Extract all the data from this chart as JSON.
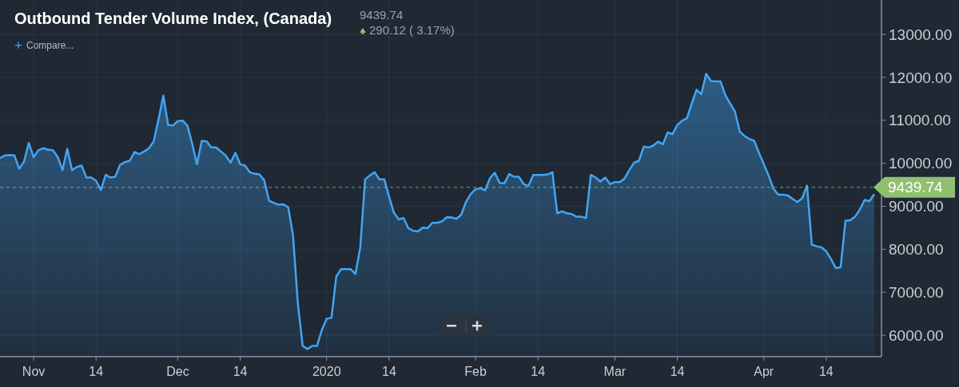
{
  "chart_data": {
    "type": "area",
    "title": "Outbound Tender Volume Index, (Canada)",
    "annotations": [
      "9439.74",
      "290.12 ( 3.17%)",
      "Compare..."
    ],
    "x": [
      "2019-10-25",
      "2019-10-26",
      "2019-10-27",
      "2019-10-28",
      "2019-10-29",
      "2019-10-30",
      "2019-10-31",
      "2019-11-01",
      "2019-11-02",
      "2019-11-03",
      "2019-11-04",
      "2019-11-05",
      "2019-11-06",
      "2019-11-07",
      "2019-11-08",
      "2019-11-09",
      "2019-11-10",
      "2019-11-11",
      "2019-11-12",
      "2019-11-13",
      "2019-11-14",
      "2019-11-15",
      "2019-11-16",
      "2019-11-17",
      "2019-11-18",
      "2019-11-19",
      "2019-11-20",
      "2019-11-21",
      "2019-11-22",
      "2019-11-23",
      "2019-11-24",
      "2019-11-25",
      "2019-11-26",
      "2019-11-27",
      "2019-11-28",
      "2019-11-29",
      "2019-11-30",
      "2019-12-01",
      "2019-12-02",
      "2019-12-03",
      "2019-12-04",
      "2019-12-05",
      "2019-12-06",
      "2019-12-07",
      "2019-12-08",
      "2019-12-09",
      "2019-12-10",
      "2019-12-11",
      "2019-12-12",
      "2019-12-13",
      "2019-12-14",
      "2019-12-15",
      "2019-12-16",
      "2019-12-17",
      "2019-12-18",
      "2019-12-19",
      "2019-12-20",
      "2019-12-21",
      "2019-12-22",
      "2019-12-23",
      "2019-12-24",
      "2019-12-25",
      "2019-12-26",
      "2019-12-27",
      "2019-12-28",
      "2019-12-29",
      "2019-12-30",
      "2019-12-31",
      "2020-01-01",
      "2020-01-02",
      "2020-01-03",
      "2020-01-04",
      "2020-01-05",
      "2020-01-06",
      "2020-01-07",
      "2020-01-08",
      "2020-01-09",
      "2020-01-10",
      "2020-01-11",
      "2020-01-12",
      "2020-01-13",
      "2020-01-14",
      "2020-01-15",
      "2020-01-16",
      "2020-01-17",
      "2020-01-18",
      "2020-01-19",
      "2020-01-20",
      "2020-01-21",
      "2020-01-22",
      "2020-01-23",
      "2020-01-24",
      "2020-01-25",
      "2020-01-26",
      "2020-01-27",
      "2020-01-28",
      "2020-01-29",
      "2020-01-30",
      "2020-01-31",
      "2020-02-01",
      "2020-02-02",
      "2020-02-03",
      "2020-02-04",
      "2020-02-05",
      "2020-02-06",
      "2020-02-07",
      "2020-02-08",
      "2020-02-09",
      "2020-02-10",
      "2020-02-11",
      "2020-02-12",
      "2020-02-13",
      "2020-02-14",
      "2020-02-15",
      "2020-02-16",
      "2020-02-17",
      "2020-02-18",
      "2020-02-19",
      "2020-02-20",
      "2020-02-21",
      "2020-02-22",
      "2020-02-23",
      "2020-02-24",
      "2020-02-25",
      "2020-02-26",
      "2020-02-27",
      "2020-02-28",
      "2020-02-29",
      "2020-03-01",
      "2020-03-02",
      "2020-03-03",
      "2020-03-04",
      "2020-03-05",
      "2020-03-06",
      "2020-03-07",
      "2020-03-08",
      "2020-03-09",
      "2020-03-10",
      "2020-03-11",
      "2020-03-12",
      "2020-03-13",
      "2020-03-14",
      "2020-03-15",
      "2020-03-16",
      "2020-03-17",
      "2020-03-18",
      "2020-03-19",
      "2020-03-20",
      "2020-03-21",
      "2020-03-22",
      "2020-03-23",
      "2020-03-24",
      "2020-03-25",
      "2020-03-26",
      "2020-03-27",
      "2020-03-28",
      "2020-03-29",
      "2020-03-30",
      "2020-03-31",
      "2020-04-01",
      "2020-04-02",
      "2020-04-03",
      "2020-04-04",
      "2020-04-05",
      "2020-04-06",
      "2020-04-07",
      "2020-04-08",
      "2020-04-09",
      "2020-04-10",
      "2020-04-11",
      "2020-04-12",
      "2020-04-13",
      "2020-04-14",
      "2020-04-15",
      "2020-04-16",
      "2020-04-17",
      "2020-04-18",
      "2020-04-19",
      "2020-04-20",
      "2020-04-21",
      "2020-04-22",
      "2020-04-23",
      "2020-04-24"
    ],
    "series": [
      {
        "color": "#42a5f5",
        "values": [
          10120,
          10182,
          10195,
          10182,
          9873,
          10040,
          10474,
          10139,
          10306,
          10350,
          10319,
          10306,
          10151,
          9842,
          10337,
          9842,
          9916,
          9947,
          9668,
          9668,
          9594,
          9377,
          9730,
          9668,
          9687,
          9965,
          10027,
          10058,
          10263,
          10213,
          10275,
          10350,
          10511,
          11019,
          11576,
          10895,
          10882,
          10982,
          10994,
          10882,
          10461,
          9978,
          10523,
          10511,
          10368,
          10368,
          10275,
          10182,
          10015,
          10244,
          9978,
          9947,
          9792,
          9755,
          9742,
          9606,
          9129,
          9079,
          9036,
          9048,
          8974,
          8324,
          6744,
          5752,
          5678,
          5752,
          5752,
          6124,
          6384,
          6403,
          7363,
          7537,
          7537,
          7537,
          7425,
          8045,
          9625,
          9718,
          9792,
          9625,
          9625,
          9222,
          8850,
          8695,
          8726,
          8491,
          8429,
          8416,
          8503,
          8491,
          8615,
          8615,
          8646,
          8745,
          8739,
          8708,
          8801,
          9098,
          9284,
          9395,
          9420,
          9371,
          9656,
          9780,
          9544,
          9532,
          9749,
          9687,
          9687,
          9519,
          9470,
          9730,
          9730,
          9730,
          9742,
          9792,
          8838,
          8881,
          8838,
          8819,
          8757,
          8757,
          8726,
          9730,
          9668,
          9575,
          9668,
          9513,
          9563,
          9563,
          9643,
          9842,
          10015,
          10058,
          10387,
          10368,
          10411,
          10505,
          10443,
          10721,
          10678,
          10895,
          10988,
          11050,
          11391,
          11713,
          11607,
          12084,
          11917,
          11905,
          11905,
          11589,
          11391,
          11205,
          10740,
          10635,
          10566,
          10523,
          10244,
          9978,
          9718,
          9408,
          9271,
          9271,
          9253,
          9172,
          9098,
          9191,
          9482,
          8107,
          8069,
          8045,
          7952,
          7766,
          7561,
          7580,
          8664,
          8677,
          8757,
          8925,
          9148,
          9117,
          9284
        ]
      }
    ],
    "xlim": [
      "2019-10-25",
      "2020-04-25T12:00"
    ],
    "xticks": [
      {
        "value": "2019-11-01",
        "label": "Nov"
      },
      {
        "value": "2019-11-14",
        "label": "14"
      },
      {
        "value": "2019-12-01",
        "label": "Dec"
      },
      {
        "value": "2019-12-14",
        "label": "14"
      },
      {
        "value": "2020-01-01",
        "label": "2020"
      },
      {
        "value": "2020-01-14",
        "label": "14"
      },
      {
        "value": "2020-02-01",
        "label": "Feb"
      },
      {
        "value": "2020-02-14",
        "label": "14"
      },
      {
        "value": "2020-03-01",
        "label": "Mar"
      },
      {
        "value": "2020-03-14",
        "label": "14"
      },
      {
        "value": "2020-04-01",
        "label": "Apr"
      },
      {
        "value": "2020-04-14",
        "label": "14"
      }
    ],
    "ylim": [
      5500,
      13800
    ],
    "yticks": [
      {
        "value": 6000,
        "label": "6000.00"
      },
      {
        "value": 7000,
        "label": "7000.00"
      },
      {
        "value": 8000,
        "label": "8000.00"
      },
      {
        "value": 9000,
        "label": "9000.00"
      },
      {
        "value": 10000,
        "label": "10000.00"
      },
      {
        "value": 11000,
        "label": "11000.00"
      },
      {
        "value": 12000,
        "label": "12000.00"
      },
      {
        "value": 13000,
        "label": "13000.00"
      }
    ],
    "ref_lines": [
      {
        "axis": "y",
        "value": 9439.74,
        "label": "9439.74",
        "color": "#8fc06f",
        "line_style": "dashed"
      }
    ],
    "grid": true,
    "marker": "none",
    "line_style": "solid"
  }
}
